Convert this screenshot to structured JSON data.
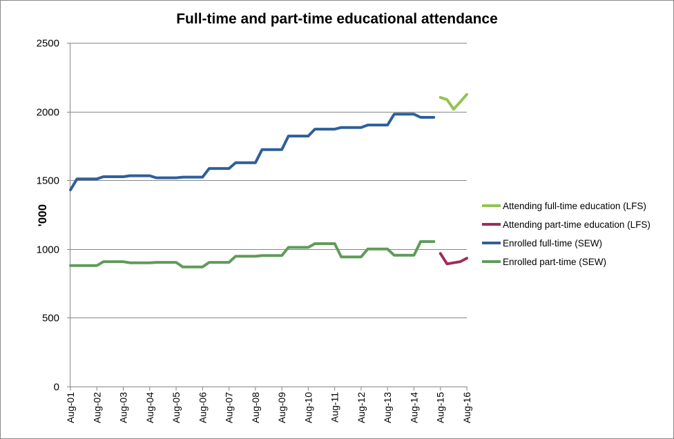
{
  "chart_data": {
    "type": "line",
    "title": "Full-time and part-time educational attendance",
    "xlabel": "",
    "ylabel": "'000",
    "ylim": [
      0,
      2500
    ],
    "yticks": [
      0,
      500,
      1000,
      1500,
      2000,
      2500
    ],
    "grid": true,
    "legend_placement": "right",
    "xtick_labels": [
      "Aug-01",
      "Aug-02",
      "Aug-03",
      "Aug-04",
      "Aug-05",
      "Aug-06",
      "Aug-07",
      "Aug-08",
      "Aug-09",
      "Aug-10",
      "Aug-11",
      "Aug-12",
      "Aug-13",
      "Aug-14",
      "Aug-15",
      "Aug-16"
    ],
    "x": [
      "Aug-01",
      "Nov-01",
      "Feb-02",
      "May-02",
      "Aug-02",
      "Nov-02",
      "Feb-03",
      "May-03",
      "Aug-03",
      "Nov-03",
      "Feb-04",
      "May-04",
      "Aug-04",
      "Nov-04",
      "Feb-05",
      "May-05",
      "Aug-05",
      "Nov-05",
      "Feb-06",
      "May-06",
      "Aug-06",
      "Nov-06",
      "Feb-07",
      "May-07",
      "Aug-07",
      "Nov-07",
      "Feb-08",
      "May-08",
      "Aug-08",
      "Nov-08",
      "Feb-09",
      "May-09",
      "Aug-09",
      "Nov-09",
      "Feb-10",
      "May-10",
      "Aug-10",
      "Nov-10",
      "Feb-11",
      "May-11",
      "Aug-11",
      "Nov-11",
      "Feb-12",
      "May-12",
      "Aug-12",
      "Nov-12",
      "Feb-13",
      "May-13",
      "Aug-13",
      "Nov-13",
      "Feb-14",
      "May-14",
      "Aug-14",
      "Nov-14",
      "Feb-15",
      "May-15",
      "Aug-15",
      "Nov-15",
      "Feb-16",
      "May-16",
      "Aug-16"
    ],
    "series": [
      {
        "name": "Attending full-time education (LFS)",
        "color": "#92C353",
        "values": [
          null,
          null,
          null,
          null,
          null,
          null,
          null,
          null,
          null,
          null,
          null,
          null,
          null,
          null,
          null,
          null,
          null,
          null,
          null,
          null,
          null,
          null,
          null,
          null,
          null,
          null,
          null,
          null,
          null,
          null,
          null,
          null,
          null,
          null,
          null,
          null,
          null,
          null,
          null,
          null,
          null,
          null,
          null,
          null,
          null,
          null,
          null,
          null,
          null,
          null,
          null,
          null,
          null,
          null,
          null,
          null,
          2103,
          2087,
          2017,
          2070,
          2125
        ]
      },
      {
        "name": "Attending part-time education (LFS)",
        "color": "#9B2D5E",
        "values": [
          null,
          null,
          null,
          null,
          null,
          null,
          null,
          null,
          null,
          null,
          null,
          null,
          null,
          null,
          null,
          null,
          null,
          null,
          null,
          null,
          null,
          null,
          null,
          null,
          null,
          null,
          null,
          null,
          null,
          null,
          null,
          null,
          null,
          null,
          null,
          null,
          null,
          null,
          null,
          null,
          null,
          null,
          null,
          null,
          null,
          null,
          null,
          null,
          null,
          null,
          null,
          null,
          null,
          null,
          null,
          null,
          968,
          892,
          900,
          908,
          933
        ]
      },
      {
        "name": "Enrolled full-time (SEW)",
        "color": "#2E5F9A",
        "values": [
          1430,
          1510,
          1510,
          1510,
          1510,
          1526,
          1526,
          1526,
          1526,
          1533,
          1533,
          1533,
          1533,
          1518,
          1518,
          1518,
          1518,
          1523,
          1523,
          1523,
          1523,
          1586,
          1586,
          1586,
          1586,
          1628,
          1628,
          1628,
          1628,
          1723,
          1723,
          1723,
          1723,
          1822,
          1822,
          1822,
          1822,
          1872,
          1872,
          1872,
          1872,
          1884,
          1884,
          1884,
          1884,
          1902,
          1902,
          1902,
          1902,
          1981,
          1981,
          1981,
          1981,
          1958,
          1958,
          1958,
          null,
          null,
          null,
          null,
          null
        ]
      },
      {
        "name": "Enrolled part-time (SEW)",
        "color": "#5E9B5A",
        "values": [
          880,
          880,
          880,
          880,
          880,
          908,
          908,
          908,
          908,
          900,
          900,
          900,
          900,
          903,
          903,
          903,
          903,
          870,
          870,
          870,
          870,
          903,
          903,
          903,
          903,
          948,
          948,
          948,
          948,
          953,
          953,
          953,
          953,
          1012,
          1012,
          1012,
          1012,
          1039,
          1039,
          1039,
          1039,
          943,
          943,
          943,
          943,
          1000,
          1000,
          1000,
          1000,
          955,
          955,
          955,
          955,
          1054,
          1054,
          1054,
          null,
          null,
          null,
          null,
          null
        ]
      }
    ]
  }
}
